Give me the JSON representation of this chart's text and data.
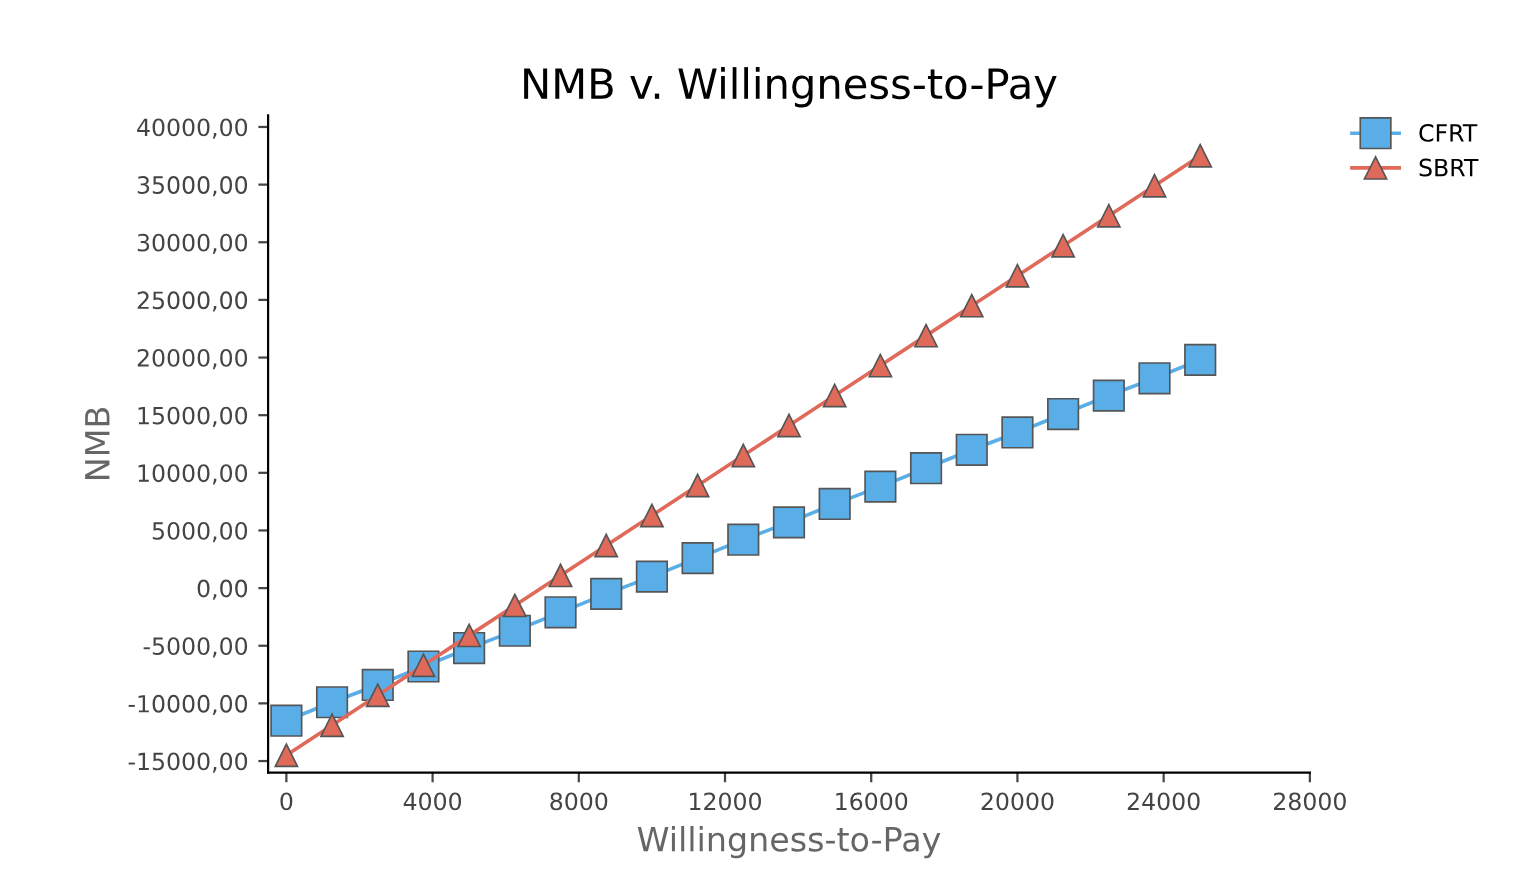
{
  "chart_data": {
    "type": "line",
    "title": "NMB v. Willingness-to-Pay",
    "xlabel": "Willingness-to-Pay",
    "ylabel": "NMB",
    "x": [
      0,
      1250,
      2500,
      3750,
      5000,
      6250,
      7500,
      8750,
      10000,
      11250,
      12500,
      13750,
      15000,
      16250,
      17500,
      18750,
      20000,
      21250,
      22500,
      23750,
      25000
    ],
    "series": [
      {
        "name": "CFRT",
        "color": "#5aaee8",
        "marker": "square",
        "values": [
          -11500,
          -9900,
          -8400,
          -6800,
          -5200,
          -3700,
          -2100,
          -500,
          1000,
          2600,
          4200,
          5700,
          7300,
          8800,
          10400,
          12000,
          13500,
          15100,
          16700,
          18200,
          19800
        ]
      },
      {
        "name": "SBRT",
        "color": "#e06a5a",
        "marker": "triangle",
        "values": [
          -14500,
          -11900,
          -9300,
          -6700,
          -4100,
          -1500,
          1100,
          3700,
          6300,
          8900,
          11500,
          14100,
          16700,
          19300,
          21900,
          24500,
          27100,
          29700,
          32300,
          34900,
          37500
        ]
      }
    ],
    "xlim": [
      -500,
      28000
    ],
    "xticks": [
      0,
      4000,
      8000,
      12000,
      16000,
      20000,
      24000,
      28000
    ],
    "ylim": [
      -16000,
      41000
    ],
    "yticks": [
      {
        "value": -15000,
        "label": "-15000,00"
      },
      {
        "value": -10000,
        "label": "-10000,00"
      },
      {
        "value": -5000,
        "label": "-5000,00"
      },
      {
        "value": 0,
        "label": "0,00"
      },
      {
        "value": 5000,
        "label": "5000,00"
      },
      {
        "value": 10000,
        "label": "10000,00"
      },
      {
        "value": 15000,
        "label": "15000,00"
      },
      {
        "value": 20000,
        "label": "20000,00"
      },
      {
        "value": 25000,
        "label": "25000,00"
      },
      {
        "value": 30000,
        "label": "30000,00"
      },
      {
        "value": 35000,
        "label": "35000,00"
      },
      {
        "value": 40000,
        "label": "40000,00"
      }
    ],
    "grid": false,
    "legend": "top right",
    "line_style": "solid"
  }
}
